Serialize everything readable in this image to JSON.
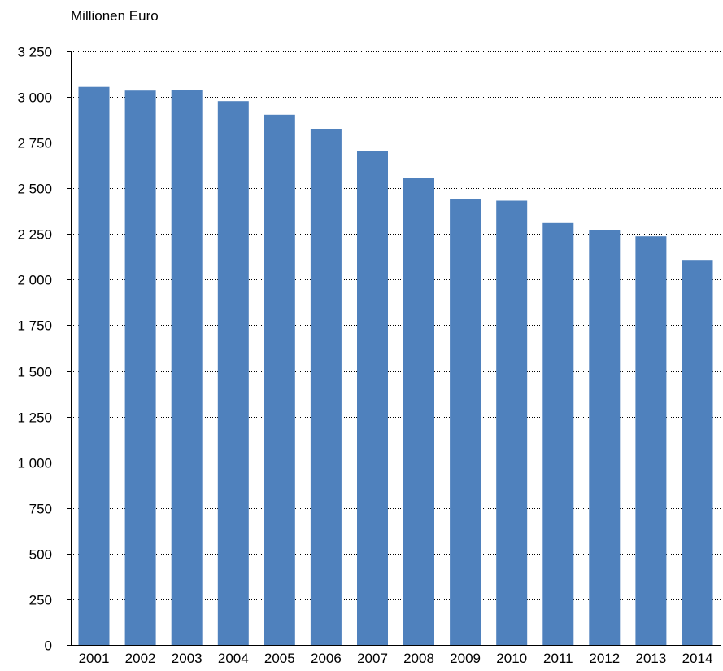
{
  "chart_data": {
    "type": "bar",
    "title": "",
    "xlabel": "",
    "ylabel": "Millionen Euro",
    "categories": [
      "2001",
      "2002",
      "2003",
      "2004",
      "2005",
      "2006",
      "2007",
      "2008",
      "2009",
      "2010",
      "2011",
      "2012",
      "2013",
      "2014"
    ],
    "series": [
      {
        "values": [
          3055,
          3035,
          3037,
          2977,
          2903,
          2823,
          2705,
          2555,
          2443,
          2432,
          2310,
          2272,
          2237,
          2108
        ],
        "color": "#4f81bd"
      }
    ],
    "ylim": [
      0,
      3250
    ],
    "yticks": [
      0,
      250,
      500,
      750,
      1000,
      1250,
      1500,
      1750,
      2000,
      2250,
      2500,
      2750,
      3000,
      3250
    ],
    "ytick_labels": [
      "0",
      "250",
      "500",
      "750",
      "1 000",
      "1 250",
      "1 500",
      "1 750",
      "2 000",
      "2 250",
      "2 500",
      "2 750",
      "3 000",
      "3 250"
    ],
    "grid": true,
    "grid_style": "dotted",
    "legend": "none"
  }
}
